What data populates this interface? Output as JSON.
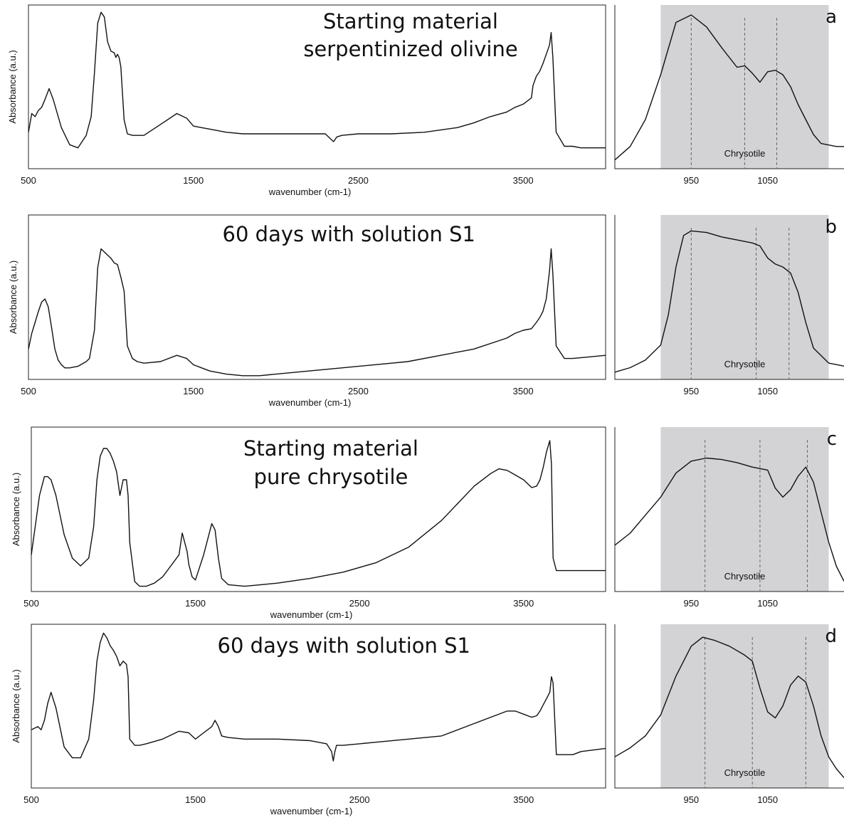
{
  "colors": {
    "trace": "#111111",
    "band": "#d3d3d5",
    "dashed_line": "#666666",
    "frame": "#222222"
  },
  "chart_data": [
    {
      "type": "line",
      "panel": "main-1",
      "title_lines": [
        "Starting material",
        "serpentinized olivine"
      ],
      "xlabel": "wavenumber (cm-1)",
      "ylabel": "Absorbance (a.u.)",
      "xlim": [
        500,
        4000
      ],
      "ylim": [
        0,
        1
      ],
      "xticks": [
        "500",
        "1500",
        "2500",
        "3500"
      ],
      "series": [
        {
          "x": [
            500,
            520,
            540,
            560,
            580,
            600,
            625,
            650,
            700,
            750,
            800,
            850,
            880,
            900,
            920,
            940,
            960,
            980,
            1000,
            1020,
            1030,
            1040,
            1050,
            1060,
            1080,
            1100,
            1130,
            1160,
            1180,
            1200,
            1300,
            1400,
            1460,
            1500,
            1550,
            1600,
            1700,
            1800,
            1900,
            2000,
            2100,
            2200,
            2300,
            2330,
            2350,
            2370,
            2400,
            2500,
            2700,
            2900,
            3100,
            3200,
            3300,
            3400,
            3450,
            3500,
            3550,
            3560,
            3580,
            3600,
            3620,
            3640,
            3660,
            3670,
            3680,
            3700,
            3750,
            3800,
            3850,
            3900,
            4000
          ],
          "y": [
            0.22,
            0.34,
            0.32,
            0.36,
            0.38,
            0.43,
            0.5,
            0.43,
            0.25,
            0.14,
            0.12,
            0.2,
            0.32,
            0.6,
            0.92,
            0.99,
            0.96,
            0.8,
            0.74,
            0.73,
            0.7,
            0.72,
            0.7,
            0.64,
            0.3,
            0.21,
            0.2,
            0.2,
            0.2,
            0.2,
            0.27,
            0.34,
            0.31,
            0.26,
            0.25,
            0.24,
            0.22,
            0.21,
            0.21,
            0.21,
            0.21,
            0.21,
            0.21,
            0.18,
            0.16,
            0.19,
            0.2,
            0.21,
            0.21,
            0.22,
            0.25,
            0.28,
            0.32,
            0.35,
            0.38,
            0.4,
            0.44,
            0.52,
            0.58,
            0.61,
            0.66,
            0.72,
            0.78,
            0.86,
            0.7,
            0.22,
            0.13,
            0.13,
            0.12,
            0.12,
            0.12
          ]
        }
      ]
    },
    {
      "type": "line",
      "panel": "main-2",
      "title_lines": [
        "60 days with solution S1"
      ],
      "xlabel": "wavenumber (cm-1)",
      "ylabel": "Absorbance (a.u.)",
      "xlim": [
        500,
        4000
      ],
      "ylim": [
        0,
        1
      ],
      "xticks": [
        "500",
        "1500",
        "2500",
        "3500"
      ],
      "series": [
        {
          "x": [
            500,
            520,
            540,
            560,
            580,
            600,
            620,
            640,
            660,
            680,
            700,
            720,
            750,
            800,
            850,
            870,
            900,
            920,
            940,
            960,
            980,
            1000,
            1020,
            1040,
            1050,
            1060,
            1080,
            1100,
            1130,
            1160,
            1200,
            1300,
            1400,
            1460,
            1500,
            1550,
            1600,
            1700,
            1800,
            1900,
            2000,
            2200,
            2400,
            2600,
            2800,
            3000,
            3200,
            3400,
            3450,
            3500,
            3550,
            3580,
            3600,
            3620,
            3640,
            3660,
            3670,
            3680,
            3700,
            3750,
            3800,
            3900,
            4000
          ],
          "y": [
            0.18,
            0.28,
            0.35,
            0.42,
            0.48,
            0.5,
            0.45,
            0.32,
            0.18,
            0.11,
            0.08,
            0.06,
            0.06,
            0.07,
            0.1,
            0.12,
            0.3,
            0.7,
            0.82,
            0.8,
            0.78,
            0.76,
            0.73,
            0.72,
            0.68,
            0.64,
            0.55,
            0.2,
            0.12,
            0.1,
            0.09,
            0.1,
            0.14,
            0.12,
            0.08,
            0.06,
            0.04,
            0.02,
            0.01,
            0.01,
            0.02,
            0.04,
            0.06,
            0.08,
            0.1,
            0.14,
            0.18,
            0.25,
            0.28,
            0.3,
            0.31,
            0.35,
            0.38,
            0.42,
            0.5,
            0.68,
            0.82,
            0.66,
            0.2,
            0.12,
            0.12,
            0.13,
            0.14
          ]
        }
      ]
    },
    {
      "type": "line",
      "panel": "main-3",
      "title_lines": [
        "Starting material",
        "pure chrysotile"
      ],
      "xlabel": "wavenumber (cm-1)",
      "ylabel": "Absorbance (a.u.)",
      "xlim": [
        500,
        4000
      ],
      "ylim": [
        0,
        1
      ],
      "xticks": [
        "500",
        "1500",
        "2500",
        "3500"
      ],
      "series": [
        {
          "x": [
            500,
            550,
            580,
            600,
            620,
            650,
            700,
            750,
            800,
            850,
            880,
            900,
            920,
            940,
            960,
            980,
            1000,
            1020,
            1040,
            1060,
            1080,
            1090,
            1100,
            1130,
            1160,
            1200,
            1250,
            1300,
            1350,
            1400,
            1420,
            1440,
            1450,
            1460,
            1480,
            1500,
            1550,
            1600,
            1620,
            1640,
            1660,
            1700,
            1800,
            1900,
            2000,
            2200,
            2400,
            2600,
            2800,
            3000,
            3100,
            3200,
            3300,
            3350,
            3400,
            3450,
            3500,
            3550,
            3580,
            3600,
            3620,
            3640,
            3660,
            3670,
            3680,
            3700,
            3750,
            3800,
            3900,
            4000
          ],
          "y": [
            0.22,
            0.6,
            0.72,
            0.72,
            0.7,
            0.6,
            0.35,
            0.2,
            0.15,
            0.2,
            0.4,
            0.7,
            0.85,
            0.9,
            0.9,
            0.87,
            0.82,
            0.75,
            0.6,
            0.7,
            0.7,
            0.6,
            0.3,
            0.05,
            0.02,
            0.02,
            0.04,
            0.08,
            0.15,
            0.22,
            0.36,
            0.28,
            0.24,
            0.16,
            0.08,
            0.06,
            0.22,
            0.42,
            0.38,
            0.2,
            0.07,
            0.03,
            0.02,
            0.03,
            0.04,
            0.07,
            0.11,
            0.17,
            0.27,
            0.44,
            0.55,
            0.66,
            0.74,
            0.77,
            0.76,
            0.73,
            0.7,
            0.65,
            0.66,
            0.7,
            0.78,
            0.88,
            0.95,
            0.8,
            0.2,
            0.12,
            0.12,
            0.12,
            0.12,
            0.12
          ]
        }
      ]
    },
    {
      "type": "line",
      "panel": "main-4",
      "title_lines": [
        "60 days with solution S1"
      ],
      "xlabel": "wavenumber (cm-1)",
      "ylabel": "Absorbance (a.u.)",
      "xlim": [
        500,
        4000
      ],
      "ylim": [
        0,
        1
      ],
      "xticks": [
        "500",
        "1500",
        "2500",
        "3500"
      ],
      "series": [
        {
          "x": [
            500,
            540,
            560,
            580,
            600,
            620,
            650,
            700,
            750,
            800,
            850,
            880,
            900,
            920,
            940,
            960,
            980,
            1000,
            1020,
            1040,
            1060,
            1080,
            1090,
            1100,
            1130,
            1160,
            1200,
            1300,
            1400,
            1460,
            1500,
            1550,
            1600,
            1620,
            1640,
            1660,
            1700,
            1800,
            2000,
            2200,
            2300,
            2330,
            2340,
            2350,
            2360,
            2380,
            2400,
            2600,
            2800,
            3000,
            3200,
            3400,
            3450,
            3500,
            3550,
            3580,
            3600,
            3620,
            3640,
            3660,
            3670,
            3680,
            3700,
            3750,
            3800,
            3850,
            4000
          ],
          "y": [
            0.36,
            0.38,
            0.36,
            0.42,
            0.53,
            0.6,
            0.5,
            0.25,
            0.18,
            0.18,
            0.3,
            0.55,
            0.8,
            0.92,
            0.98,
            0.95,
            0.9,
            0.87,
            0.83,
            0.77,
            0.8,
            0.78,
            0.7,
            0.3,
            0.26,
            0.26,
            0.27,
            0.3,
            0.35,
            0.34,
            0.3,
            0.34,
            0.38,
            0.42,
            0.38,
            0.32,
            0.31,
            0.3,
            0.3,
            0.29,
            0.27,
            0.22,
            0.16,
            0.22,
            0.26,
            0.26,
            0.26,
            0.28,
            0.3,
            0.32,
            0.4,
            0.48,
            0.48,
            0.46,
            0.44,
            0.45,
            0.48,
            0.52,
            0.56,
            0.6,
            0.7,
            0.66,
            0.2,
            0.2,
            0.2,
            0.22,
            0.24
          ]
        }
      ]
    },
    {
      "type": "line",
      "panel": "inset-a",
      "letter": "a",
      "band_label": "Chrysotile",
      "xlim": [
        850,
        1150
      ],
      "ylim": [
        0,
        1
      ],
      "xticks": [
        "950",
        "1050"
      ],
      "band": [
        910,
        1130
      ],
      "dashed_lines": [
        950,
        1020,
        1062
      ],
      "series": [
        {
          "x": [
            850,
            870,
            890,
            910,
            930,
            950,
            970,
            990,
            1010,
            1020,
            1030,
            1040,
            1050,
            1060,
            1070,
            1080,
            1090,
            1100,
            1110,
            1120,
            1140,
            1150
          ],
          "y": [
            0.03,
            0.12,
            0.3,
            0.6,
            0.95,
            1.0,
            0.92,
            0.78,
            0.65,
            0.66,
            0.61,
            0.55,
            0.62,
            0.63,
            0.6,
            0.52,
            0.4,
            0.3,
            0.2,
            0.14,
            0.12,
            0.12
          ]
        }
      ]
    },
    {
      "type": "line",
      "panel": "inset-b",
      "letter": "b",
      "band_label": "Chrysotile",
      "xlim": [
        850,
        1150
      ],
      "ylim": [
        0,
        1
      ],
      "xticks": [
        "950",
        "1050"
      ],
      "band": [
        910,
        1130
      ],
      "dashed_lines": [
        950,
        1035,
        1078
      ],
      "series": [
        {
          "x": [
            850,
            870,
            890,
            910,
            920,
            930,
            940,
            950,
            970,
            990,
            1010,
            1030,
            1040,
            1050,
            1060,
            1070,
            1080,
            1090,
            1100,
            1110,
            1130,
            1150
          ],
          "y": [
            0.02,
            0.05,
            0.1,
            0.2,
            0.4,
            0.72,
            0.93,
            0.96,
            0.95,
            0.92,
            0.9,
            0.88,
            0.86,
            0.78,
            0.74,
            0.72,
            0.68,
            0.55,
            0.35,
            0.18,
            0.08,
            0.06
          ]
        }
      ]
    },
    {
      "type": "line",
      "panel": "inset-c",
      "letter": "c",
      "band_label": "Chrysotile",
      "xlim": [
        850,
        1150
      ],
      "ylim": [
        0,
        1
      ],
      "xticks": [
        "950",
        "1050"
      ],
      "band": [
        910,
        1130
      ],
      "dashed_lines": [
        968,
        1040,
        1102
      ],
      "series": [
        {
          "x": [
            850,
            870,
            890,
            910,
            930,
            950,
            970,
            990,
            1010,
            1030,
            1050,
            1060,
            1070,
            1080,
            1090,
            1100,
            1110,
            1120,
            1130,
            1140,
            1150
          ],
          "y": [
            0.28,
            0.36,
            0.48,
            0.6,
            0.76,
            0.84,
            0.86,
            0.85,
            0.83,
            0.8,
            0.78,
            0.66,
            0.6,
            0.65,
            0.74,
            0.8,
            0.7,
            0.5,
            0.3,
            0.14,
            0.04
          ]
        }
      ]
    },
    {
      "type": "line",
      "panel": "inset-d",
      "letter": "d",
      "band_label": "Chrysotile",
      "xlim": [
        850,
        1150
      ],
      "ylim": [
        0,
        1
      ],
      "xticks": [
        "950",
        "1050"
      ],
      "band": [
        910,
        1130
      ],
      "dashed_lines": [
        968,
        1030,
        1100
      ],
      "series": [
        {
          "x": [
            850,
            870,
            890,
            910,
            930,
            950,
            965,
            980,
            1000,
            1020,
            1030,
            1040,
            1050,
            1060,
            1070,
            1080,
            1090,
            1100,
            1110,
            1120,
            1130,
            1140,
            1150
          ],
          "y": [
            0.18,
            0.24,
            0.32,
            0.46,
            0.72,
            0.92,
            0.98,
            0.96,
            0.92,
            0.86,
            0.82,
            0.64,
            0.48,
            0.44,
            0.52,
            0.66,
            0.72,
            0.68,
            0.52,
            0.32,
            0.18,
            0.1,
            0.04
          ]
        }
      ]
    }
  ]
}
